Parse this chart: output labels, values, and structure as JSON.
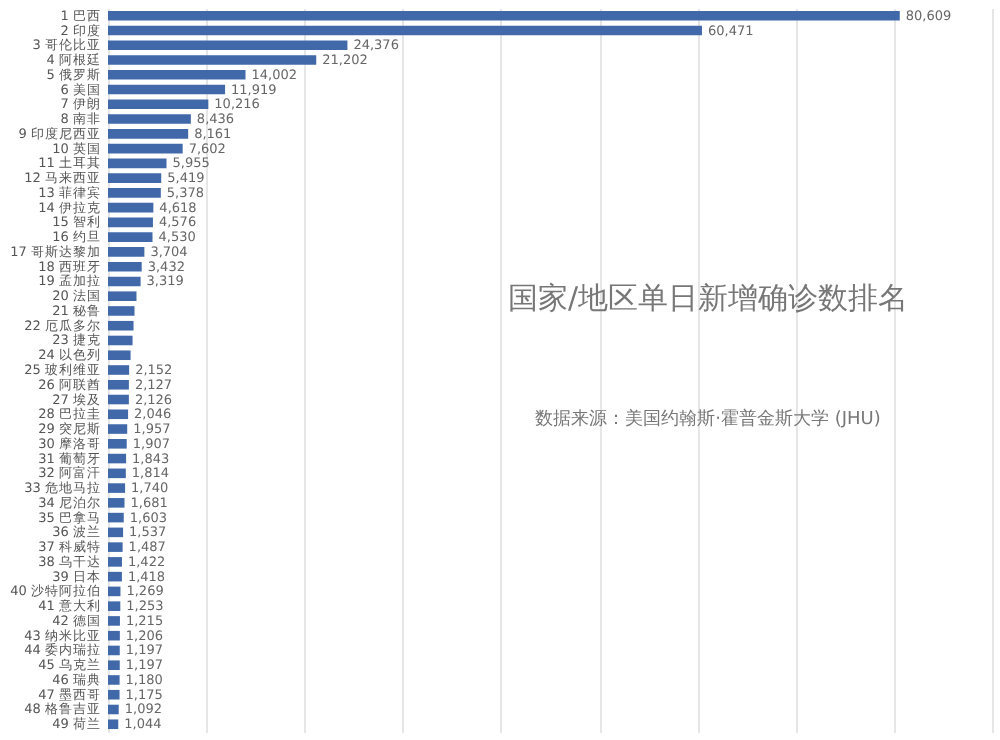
{
  "chart_data": {
    "type": "bar",
    "orientation": "horizontal",
    "title": "国家/地区单日新增确诊数排名",
    "annotations": [
      "数据来源：美国约翰斯·霍普金斯大学 (JHU)"
    ],
    "categories": [
      "1 巴西",
      "2 印度",
      "3 哥伦比亚",
      "4 阿根廷",
      "5 俄罗斯",
      "6 美国",
      "7 伊朗",
      "8 南非",
      "9 印度尼西亚",
      "10 英国",
      "11 土耳其",
      "12 马来西亚",
      "13 菲律宾",
      "14 伊拉克",
      "15 智利",
      "16 约旦",
      "17 哥斯达黎加",
      "18 西班牙",
      "19 孟加拉",
      "20 法国",
      "21 秘鲁",
      "22 厄瓜多尔",
      "23 捷克",
      "24 以色列",
      "25 玻利维亚",
      "26 阿联酋",
      "27 埃及",
      "28 巴拉圭",
      "29 突尼斯",
      "30 摩洛哥",
      "31 葡萄牙",
      "32 阿富汗",
      "33 危地马拉",
      "34 尼泊尔",
      "35 巴拿马",
      "36 波兰",
      "37 科威特",
      "38 乌干达",
      "39 日本",
      "40 沙特阿拉伯",
      "41 意大利",
      "42 德国",
      "43 纳米比亚",
      "44 委内瑞拉",
      "45 乌克兰",
      "46 瑞典",
      "47 墨西哥",
      "48 格鲁吉亚",
      "49 荷兰"
    ],
    "values": [
      80609,
      60471,
      24376,
      21202,
      14002,
      11919,
      10216,
      8436,
      8161,
      7602,
      5955,
      5419,
      5378,
      4618,
      4576,
      4530,
      3704,
      3432,
      3319,
      2900,
      2700,
      2600,
      2500,
      2300,
      2152,
      2127,
      2126,
      2046,
      1957,
      1907,
      1843,
      1814,
      1740,
      1681,
      1603,
      1537,
      1487,
      1422,
      1418,
      1269,
      1253,
      1215,
      1206,
      1197,
      1197,
      1180,
      1175,
      1092,
      1044
    ],
    "value_labels": [
      "80,609",
      "60,471",
      "24,376",
      "21,202",
      "14,002",
      "11,919",
      "10,216",
      "8,436",
      "8,161",
      "7,602",
      "5,955",
      "5,419",
      "5,378",
      "4,618",
      "4,576",
      "4,530",
      "3,704",
      "3,432",
      "3,319",
      null,
      null,
      null,
      null,
      null,
      "2,152",
      "2,127",
      "2,126",
      "2,046",
      "1,957",
      "1,907",
      "1,843",
      "1,814",
      "1,740",
      "1,681",
      "1,603",
      "1,537",
      "1,487",
      "1,422",
      "1,418",
      "1,269",
      "1,253",
      "1,215",
      "1,206",
      "1,197",
      "1,197",
      "1,180",
      "1,175",
      "1,092",
      "1,044"
    ],
    "color": "#4169aa",
    "xlim": [
      0,
      90000
    ],
    "xticks": [
      {
        "value": 0,
        "label": null
      },
      {
        "value": 10000,
        "label": null
      },
      {
        "value": 20000,
        "label": null
      },
      {
        "value": 30000,
        "label": null
      },
      {
        "value": 40000,
        "label": null
      },
      {
        "value": 50000,
        "label": null
      },
      {
        "value": 60000,
        "label": null
      },
      {
        "value": 70000,
        "label": null
      },
      {
        "value": 80000,
        "label": null
      },
      {
        "value": 90000,
        "label": null
      }
    ],
    "grid": "x",
    "tick_labels": "y"
  }
}
